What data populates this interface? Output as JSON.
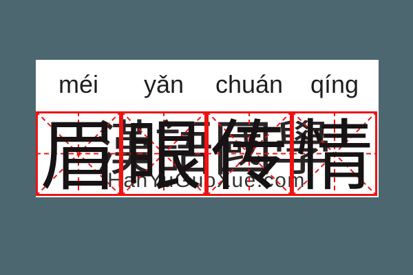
{
  "canvas": {
    "background_color": "#4D6770",
    "card_color": "#ffffff"
  },
  "colors": {
    "grid_red": "#EE1212",
    "hanzi_black": "#171213",
    "cjk_watermark_color": "#2b2424",
    "site_watermark_color": "#333333",
    "pinyin_color": "#1e1e1e"
  },
  "word": {
    "pinyin": [
      "méi",
      "yǎn",
      "chuán",
      "qíng"
    ],
    "hanzi": [
      "眉",
      "眼",
      "传",
      "情"
    ]
  },
  "watermarks": {
    "cjk_text": "漢語國學",
    "site_text": "HanYuGuoXue.com"
  },
  "grid": {
    "cell_count": 4,
    "style": "mizige"
  }
}
